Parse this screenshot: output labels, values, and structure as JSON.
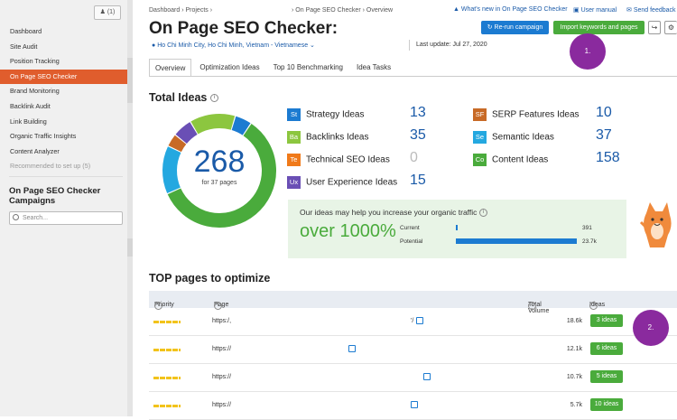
{
  "sidebar": {
    "users_count": "(1)",
    "items": [
      {
        "label": "Dashboard"
      },
      {
        "label": "Site Audit"
      },
      {
        "label": "Position Tracking"
      },
      {
        "label": "On Page SEO Checker"
      },
      {
        "label": "Brand Monitoring"
      },
      {
        "label": "Backlink Audit"
      },
      {
        "label": "Link Building"
      },
      {
        "label": "Organic Traffic Insights"
      },
      {
        "label": "Content Analyzer"
      }
    ],
    "recommended": "Recommended to set up (5)",
    "campaigns_heading": "On Page SEO Checker Campaigns",
    "search_placeholder": "Search..."
  },
  "breadcrumb": {
    "dashboard": "Dashboard",
    "projects": "Projects",
    "tool": "On Page SEO Checker",
    "current": "Overview"
  },
  "top_links": {
    "whats_new": "What's new in On Page SEO Checker",
    "manual": "User manual",
    "feedback": "Send feedback"
  },
  "page": {
    "title": "On Page SEO Checker:",
    "location": "Ho Chi Minh City, Ho Chi Minh, Vietnam - Vietnamese",
    "last_update": "Last update: Jul 27, 2020",
    "rerun_label": "Re-run campaign",
    "import_label": "Import keywords and pages"
  },
  "annotations": {
    "badge1": "1.",
    "badge2": "2."
  },
  "tabs": [
    {
      "label": "Overview"
    },
    {
      "label": "Optimization Ideas"
    },
    {
      "label": "Top 10 Benchmarking"
    },
    {
      "label": "Idea Tasks"
    }
  ],
  "total_ideas": {
    "heading": "Total Ideas",
    "total": "268",
    "pages": "for 37 pages",
    "ideas": [
      {
        "abbr": "St",
        "label": "Strategy Ideas",
        "count": "13",
        "color": "#1c7bd1"
      },
      {
        "abbr": "Ba",
        "label": "Backlinks Ideas",
        "count": "35",
        "color": "#8cc63f"
      },
      {
        "abbr": "Te",
        "label": "Technical SEO Ideas",
        "count": "0",
        "color": "#f07a1a"
      },
      {
        "abbr": "Ux",
        "label": "User Experience Ideas",
        "count": "15",
        "color": "#6a4fb5"
      },
      {
        "abbr": "SF",
        "label": "SERP Features Ideas",
        "count": "10",
        "color": "#c86a26"
      },
      {
        "abbr": "Se",
        "label": "Semantic Ideas",
        "count": "37",
        "color": "#24a8e0"
      },
      {
        "abbr": "Co",
        "label": "Content Ideas",
        "count": "158",
        "color": "#4aab3c"
      }
    ]
  },
  "traffic": {
    "heading": "Our ideas may help you increase your organic traffic",
    "increase": "over 1000%",
    "current_label": "Current",
    "current_value": "391",
    "current_fraction": 0.016,
    "potential_label": "Potential",
    "potential_value": "23.7k",
    "potential_fraction": 1.0
  },
  "top_pages": {
    "heading": "TOP pages to optimize",
    "columns": {
      "priority": "Priority",
      "page": "Page",
      "volume": "Total Volume",
      "ideas": "Ideas"
    },
    "rows": [
      {
        "url": "https:/,",
        "suffix": "'/",
        "volume": "18.6k",
        "ideas": "3 ideas"
      },
      {
        "url": "https://",
        "suffix": "",
        "volume": "12.1k",
        "ideas": "6 ideas"
      },
      {
        "url": "https://",
        "suffix": "",
        "volume": "10.7k",
        "ideas": "5 ideas"
      },
      {
        "url": "https://",
        "suffix": "",
        "volume": "5.7k",
        "ideas": "10 ideas"
      }
    ]
  }
}
